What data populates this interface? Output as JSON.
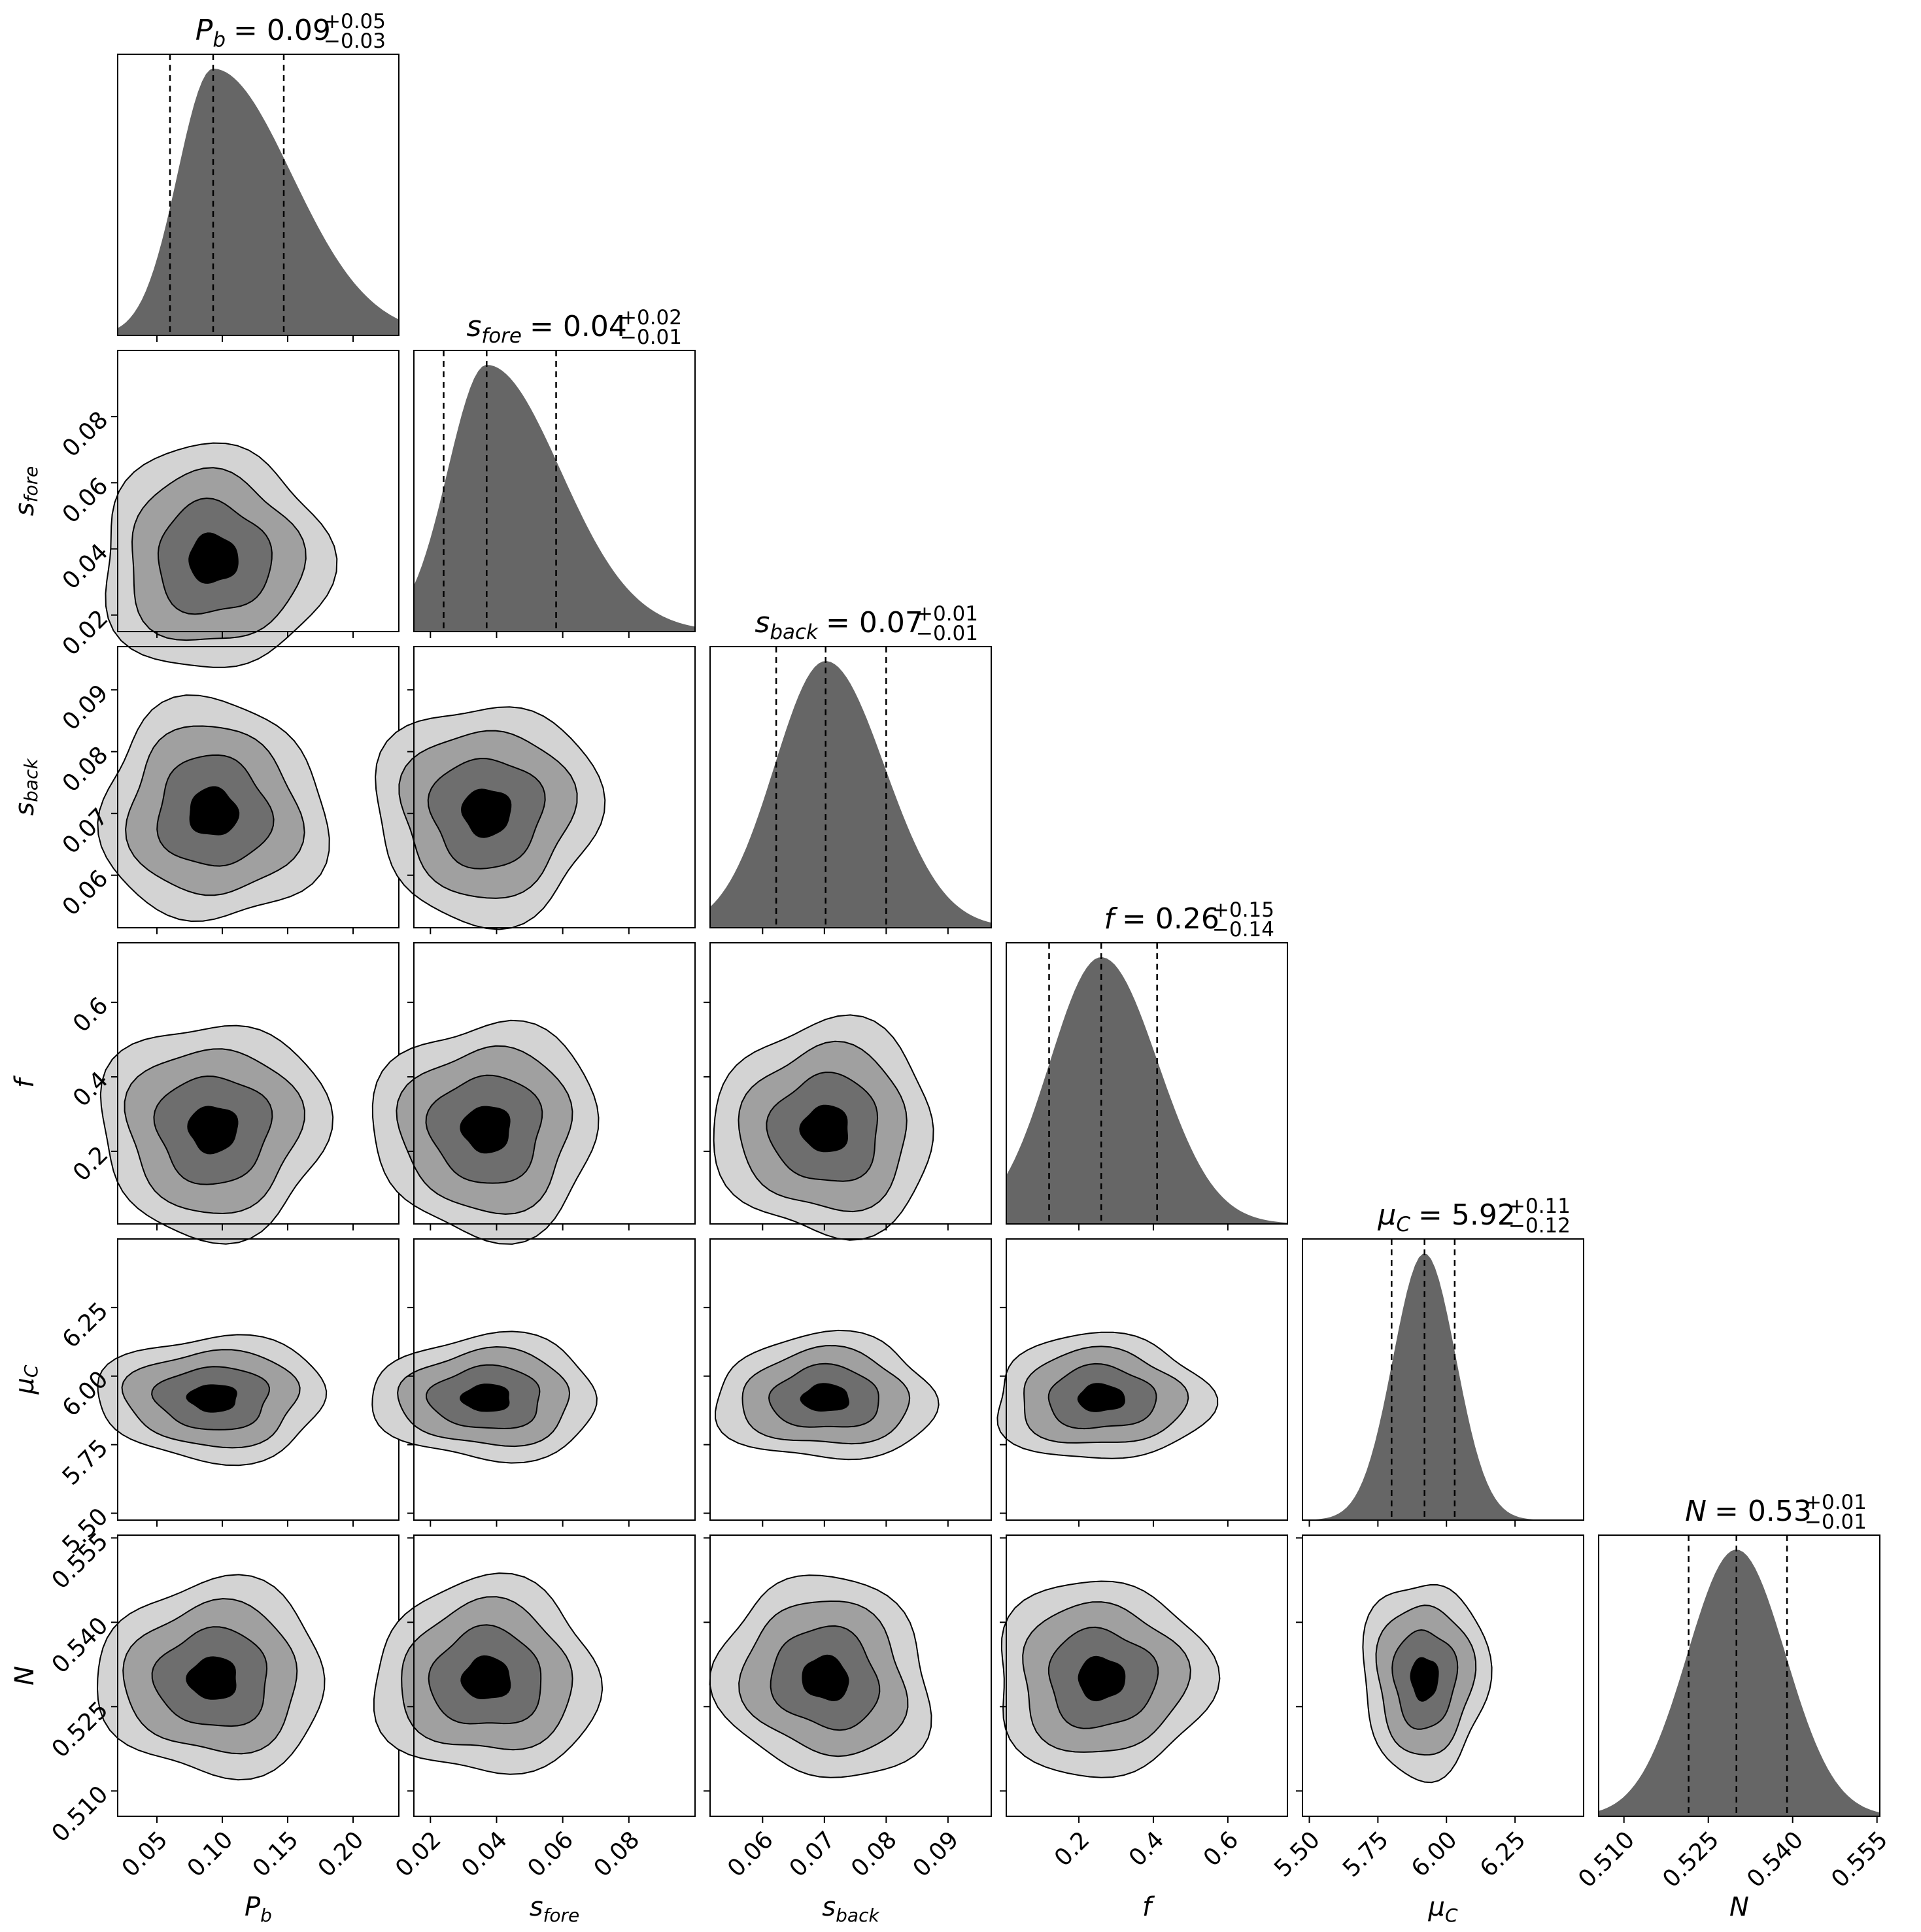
{
  "chart_data": {
    "type": "corner",
    "parameters": [
      {
        "id": "Pb",
        "name": "P",
        "sub": "b",
        "title": {
          "median": "0.09",
          "plus": "+0.05",
          "minus": "−0.03"
        },
        "range": [
          0.02,
          0.235
        ],
        "ticks": [
          "0.05",
          "0.10",
          "0.15",
          "0.20"
        ],
        "tick_values": [
          0.05,
          0.1,
          0.15,
          0.2
        ],
        "median": 0.093,
        "q16": 0.06,
        "q84": 0.147,
        "skew": 2.2
      },
      {
        "id": "sfore",
        "name": "s",
        "sub": "fore",
        "title": {
          "median": "0.04",
          "plus": "+0.02",
          "minus": "−0.01"
        },
        "range": [
          0.015,
          0.1
        ],
        "ticks": [
          "0.02",
          "0.04",
          "0.06",
          "0.08"
        ],
        "tick_values": [
          0.02,
          0.04,
          0.06,
          0.08
        ],
        "median": 0.037,
        "q16": 0.024,
        "q84": 0.058,
        "skew": 1.9
      },
      {
        "id": "sback",
        "name": "s",
        "sub": "back",
        "title": {
          "median": "0.07",
          "plus": "+0.01",
          "minus": "−0.01"
        },
        "range": [
          0.0515,
          0.097
        ],
        "ticks": [
          "0.06",
          "0.07",
          "0.08",
          "0.09"
        ],
        "tick_values": [
          0.06,
          0.07,
          0.08,
          0.09
        ],
        "median": 0.0702,
        "q16": 0.0622,
        "q84": 0.08,
        "skew": 1.15
      },
      {
        "id": "f",
        "name": "f",
        "sub": "",
        "title": {
          "median": "0.26",
          "plus": "+0.15",
          "minus": "−0.14"
        },
        "range": [
          0.005,
          0.76
        ],
        "ticks": [
          "0.2",
          "0.4",
          "0.6"
        ],
        "tick_values": [
          0.2,
          0.4,
          0.6
        ],
        "median": 0.26,
        "q16": 0.12,
        "q84": 0.41,
        "skew": 1.1
      },
      {
        "id": "muC",
        "name": "μ",
        "sub": "C",
        "title": {
          "median": "5.92",
          "plus": "+0.11",
          "minus": "−0.12"
        },
        "range": [
          5.475,
          6.5
        ],
        "ticks": [
          "5.50",
          "5.75",
          "6.00",
          "6.25"
        ],
        "tick_values": [
          5.5,
          5.75,
          6.0,
          6.25
        ],
        "median": 5.92,
        "q16": 5.8,
        "q84": 6.03,
        "skew": 1.0
      },
      {
        "id": "N",
        "name": "N",
        "sub": "",
        "title": {
          "median": "0.53",
          "plus": "+0.01",
          "minus": "−0.01"
        },
        "range": [
          0.5055,
          0.5555
        ],
        "ticks": [
          "0.510",
          "0.525",
          "0.540",
          "0.555"
        ],
        "tick_values": [
          0.51,
          0.525,
          0.54,
          0.555
        ],
        "median": 0.53,
        "q16": 0.5215,
        "q84": 0.539,
        "skew": 1.0
      }
    ],
    "histogram_color": "#666666",
    "contour_colors": [
      "#d3d3d3",
      "#a0a0a0",
      "#6e6e6e",
      "#000000"
    ],
    "contour_levels": 4,
    "grid": false,
    "legend": "none"
  }
}
